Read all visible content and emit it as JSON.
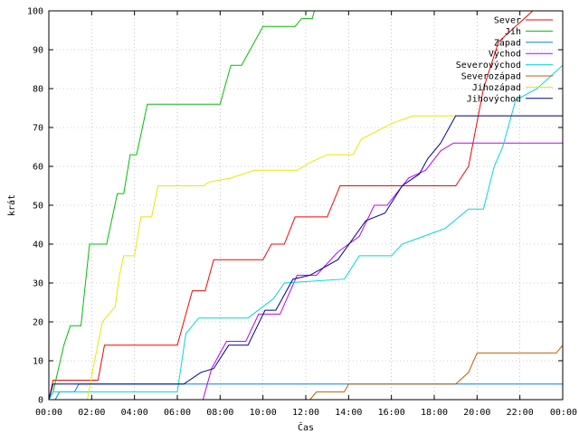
{
  "chart_data": {
    "type": "line",
    "xlabel": "Čas",
    "ylabel": "krát",
    "xlim": [
      0,
      24
    ],
    "ylim": [
      0,
      100
    ],
    "x_ticks": [
      "00:00",
      "02:00",
      "04:00",
      "06:00",
      "08:00",
      "10:00",
      "12:00",
      "14:00",
      "16:00",
      "18:00",
      "20:00",
      "22:00",
      "00:00"
    ],
    "y_ticks": [
      "0",
      "10",
      "20",
      "30",
      "40",
      "50",
      "60",
      "70",
      "80",
      "90",
      "100"
    ],
    "grid": true,
    "legend_position": "top-right",
    "series": [
      {
        "name": "Sever",
        "color": "#ff0000",
        "points": [
          [
            0,
            0
          ],
          [
            0.2,
            5
          ],
          [
            2.3,
            5
          ],
          [
            2.6,
            14
          ],
          [
            6,
            14
          ],
          [
            6.7,
            28
          ],
          [
            7.3,
            28
          ],
          [
            7.7,
            36
          ],
          [
            10,
            36
          ],
          [
            10.4,
            40
          ],
          [
            11,
            40
          ],
          [
            11.5,
            47
          ],
          [
            13,
            47
          ],
          [
            13.6,
            55
          ],
          [
            19,
            55
          ],
          [
            19.6,
            60
          ],
          [
            20.3,
            80
          ],
          [
            21,
            92
          ],
          [
            22.6,
            100
          ]
        ]
      },
      {
        "name": "Jih",
        "color": "#00c000",
        "points": [
          [
            0,
            0
          ],
          [
            0.2,
            2
          ],
          [
            0.7,
            14
          ],
          [
            1,
            19
          ],
          [
            1.5,
            19
          ],
          [
            1.9,
            40
          ],
          [
            2.7,
            40
          ],
          [
            3.2,
            53
          ],
          [
            3.5,
            53
          ],
          [
            3.8,
            63
          ],
          [
            4.1,
            63
          ],
          [
            4.6,
            76
          ],
          [
            8,
            76
          ],
          [
            8.5,
            86
          ],
          [
            9,
            86
          ],
          [
            10,
            96
          ],
          [
            11.5,
            96
          ],
          [
            11.8,
            98
          ],
          [
            12.3,
            98
          ],
          [
            12.4,
            100
          ]
        ]
      },
      {
        "name": "Západ",
        "color": "#0080ff",
        "points": [
          [
            0,
            0
          ],
          [
            0.3,
            0
          ],
          [
            0.5,
            2
          ],
          [
            1.2,
            2
          ],
          [
            1.4,
            4
          ],
          [
            24,
            4
          ]
        ]
      },
      {
        "name": "Východ",
        "color": "#c000ff",
        "points": [
          [
            0,
            0
          ],
          [
            7.2,
            0
          ],
          [
            7.6,
            8
          ],
          [
            8.3,
            15
          ],
          [
            9.2,
            15
          ],
          [
            9.8,
            22
          ],
          [
            10.8,
            22
          ],
          [
            11.6,
            32
          ],
          [
            12.5,
            32
          ],
          [
            13.5,
            38
          ],
          [
            14.5,
            42
          ],
          [
            15.2,
            50
          ],
          [
            15.8,
            50
          ],
          [
            16.8,
            57
          ],
          [
            17.6,
            59
          ],
          [
            18.3,
            64
          ],
          [
            18.9,
            66
          ],
          [
            24,
            66
          ]
        ]
      },
      {
        "name": "Severovýchod",
        "color": "#00d8d8",
        "points": [
          [
            0,
            0
          ],
          [
            0.2,
            2
          ],
          [
            6,
            2
          ],
          [
            6.4,
            17
          ],
          [
            7,
            21
          ],
          [
            9.3,
            21
          ],
          [
            10.5,
            26
          ],
          [
            11,
            30
          ],
          [
            13.8,
            31
          ],
          [
            14.5,
            37
          ],
          [
            16,
            37
          ],
          [
            16.5,
            40
          ],
          [
            17.5,
            42
          ],
          [
            18.5,
            44
          ],
          [
            19.6,
            49
          ],
          [
            20.3,
            49
          ],
          [
            20.8,
            60
          ],
          [
            21.2,
            65
          ],
          [
            21.8,
            77
          ],
          [
            22.8,
            80
          ],
          [
            24,
            86
          ]
        ]
      },
      {
        "name": "Severozápad",
        "color": "#c06000",
        "points": [
          [
            0,
            0
          ],
          [
            12.2,
            0
          ],
          [
            12.5,
            2
          ],
          [
            13.8,
            2
          ],
          [
            14,
            4
          ],
          [
            19,
            4
          ],
          [
            19.6,
            7
          ],
          [
            20,
            12
          ],
          [
            23.7,
            12
          ],
          [
            24,
            14
          ]
        ]
      },
      {
        "name": "Jihozápad",
        "color": "#e8e800",
        "points": [
          [
            0,
            0
          ],
          [
            1.8,
            0
          ],
          [
            2.1,
            9
          ],
          [
            2.5,
            20
          ],
          [
            3.1,
            24
          ],
          [
            3.3,
            32
          ],
          [
            3.5,
            37
          ],
          [
            4,
            37
          ],
          [
            4.3,
            47
          ],
          [
            4.8,
            47
          ],
          [
            5.1,
            55
          ],
          [
            7.2,
            55
          ],
          [
            7.5,
            56
          ],
          [
            8.5,
            57
          ],
          [
            9.6,
            59
          ],
          [
            11.6,
            59
          ],
          [
            12.2,
            61
          ],
          [
            13,
            63
          ],
          [
            14.2,
            63
          ],
          [
            14.6,
            67
          ],
          [
            15.3,
            69
          ],
          [
            16,
            71
          ],
          [
            17,
            73
          ],
          [
            24,
            73
          ]
        ]
      },
      {
        "name": "Jihovýchod",
        "color": "#0000a0",
        "points": [
          [
            0,
            0
          ],
          [
            0.2,
            4
          ],
          [
            6.3,
            4
          ],
          [
            7.1,
            7
          ],
          [
            7.7,
            8
          ],
          [
            8.4,
            14
          ],
          [
            9.3,
            14
          ],
          [
            10.1,
            23
          ],
          [
            10.6,
            23
          ],
          [
            11.4,
            31
          ],
          [
            12.2,
            32
          ],
          [
            13.5,
            36
          ],
          [
            14.8,
            46
          ],
          [
            15.7,
            48
          ],
          [
            16.5,
            55
          ],
          [
            17.3,
            58
          ],
          [
            17.7,
            62
          ],
          [
            18.3,
            66
          ],
          [
            19,
            73
          ],
          [
            24,
            73
          ]
        ]
      }
    ]
  }
}
